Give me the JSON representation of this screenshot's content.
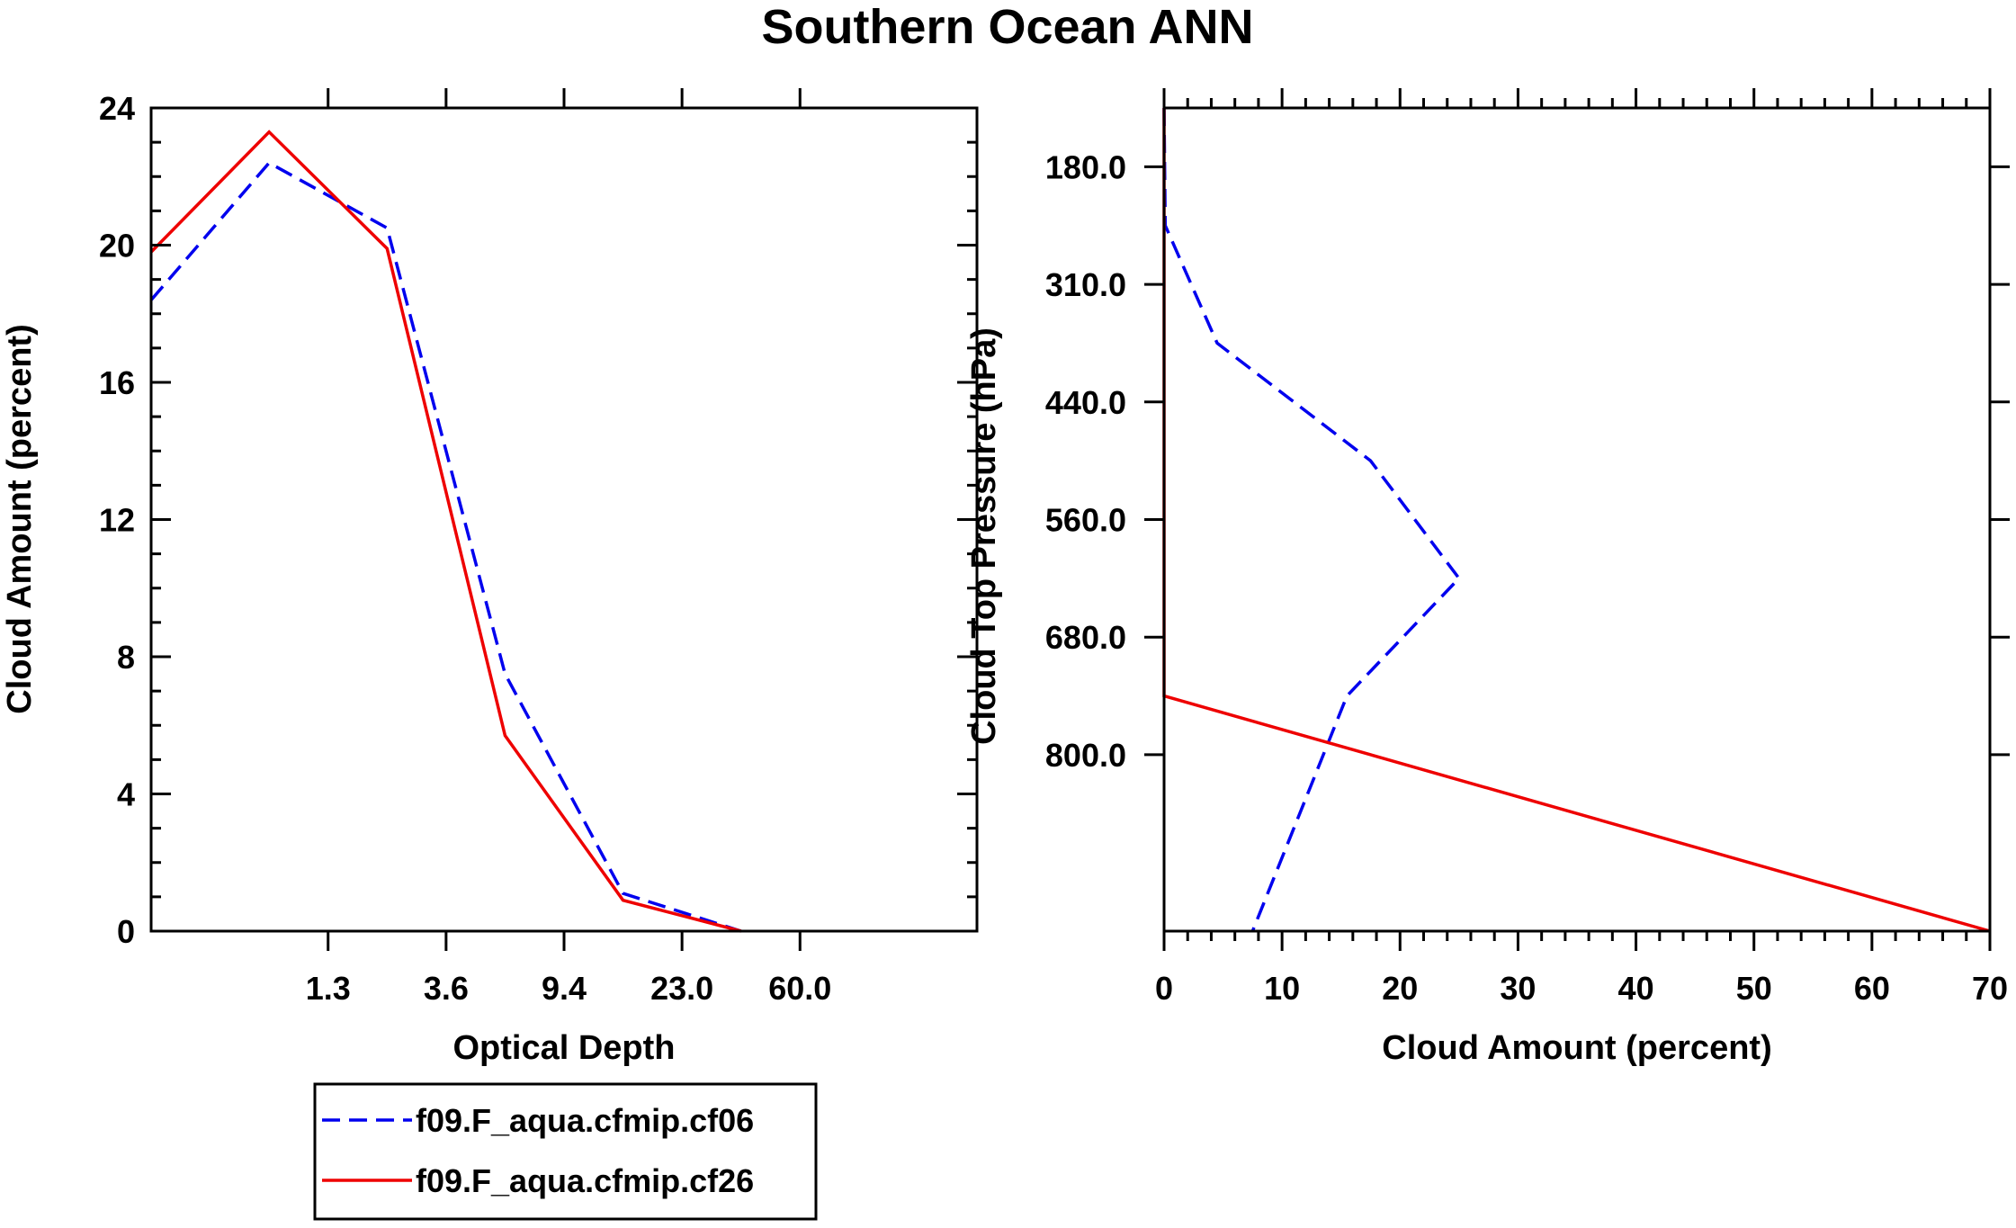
{
  "colors": {
    "series_a": "#0000ee",
    "series_b": "#ee0000",
    "axis": "#000000"
  },
  "chart_data": [
    {
      "type": "line",
      "title": "Southern Ocean ANN",
      "xlabel": "Optical Depth",
      "ylabel": "Cloud Amount (percent)",
      "ylim": [
        0,
        24
      ],
      "yticks": [
        "0",
        "4",
        "8",
        "12",
        "16",
        "20",
        "24"
      ],
      "x_category_labels": [
        "1.3",
        "3.6",
        "9.4",
        "23.0",
        "60.0"
      ],
      "x_bins": 7,
      "series": [
        {
          "name": "f09.F_aqua.cfmip.cf06",
          "style": "dashed",
          "values": [
            18.4,
            22.4,
            20.5,
            7.5,
            1.1,
            0.0
          ]
        },
        {
          "name": "f09.F_aqua.cfmip.cf26",
          "style": "solid",
          "values": [
            19.8,
            23.3,
            19.9,
            5.7,
            0.9,
            0.0
          ]
        }
      ]
    },
    {
      "type": "line",
      "xlabel": "Cloud Amount (percent)",
      "ylabel": "Cloud Top Pressure (hPa)",
      "xlim": [
        0,
        70
      ],
      "xticks": [
        "0",
        "10",
        "20",
        "30",
        "40",
        "50",
        "60",
        "70"
      ],
      "y_category_labels": [
        "180.0",
        "310.0",
        "440.0",
        "560.0",
        "680.0",
        "800.0"
      ],
      "y_levels": 7,
      "series": [
        {
          "name": "f09.F_aqua.cfmip.cf06",
          "style": "dashed",
          "values": [
            0.0,
            0.1,
            4.5,
            17.5,
            25.0,
            15.5,
            7.5
          ]
        },
        {
          "name": "f09.F_aqua.cfmip.cf26",
          "style": "solid",
          "values": [
            0.0,
            0.0,
            0.0,
            0.0,
            0.0,
            0.0,
            70.0
          ]
        }
      ]
    }
  ],
  "legend": {
    "entries": [
      "f09.F_aqua.cfmip.cf06",
      "f09.F_aqua.cfmip.cf26"
    ]
  }
}
